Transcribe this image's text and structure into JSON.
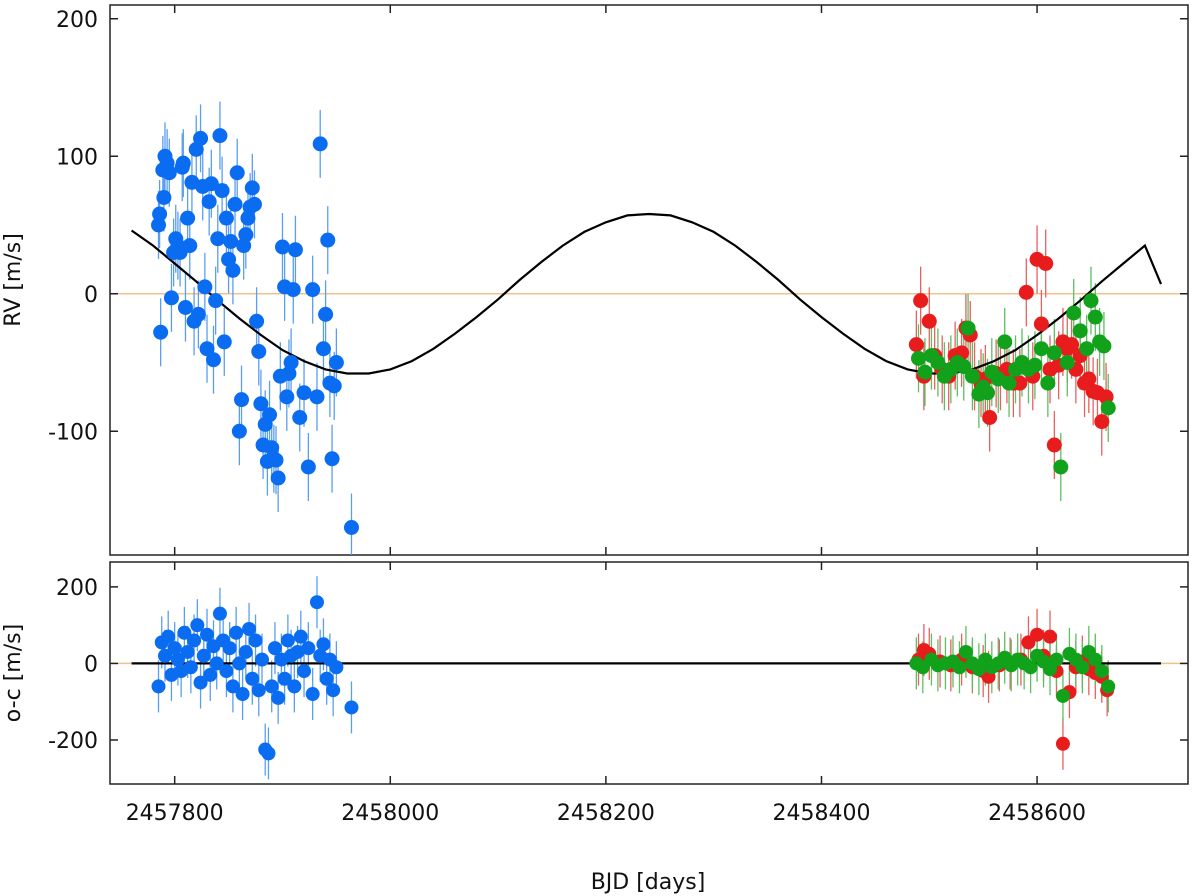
{
  "chart_data": [
    {
      "type": "scatter",
      "title": "",
      "xlabel": "",
      "ylabel": "RV [m/s]",
      "xlim": [
        2457740,
        2458740
      ],
      "ylim": [
        -190,
        210
      ],
      "xticks": [
        2457800,
        2458000,
        2458200,
        2458400,
        2458600
      ],
      "yticks": [
        200,
        100,
        0,
        -100
      ],
      "ytick_labels": [
        "200",
        "100",
        "0",
        "-100"
      ],
      "grid": false,
      "reference_line": {
        "y": 0,
        "color": "#f4c08a"
      },
      "model_curve": {
        "color": "#000000",
        "label": "",
        "x": [
          2457760,
          2457780,
          2457800,
          2457820,
          2457840,
          2457860,
          2457880,
          2457900,
          2457920,
          2457940,
          2457960,
          2457980,
          2458000,
          2458020,
          2458040,
          2458060,
          2458080,
          2458100,
          2458120,
          2458140,
          2458160,
          2458180,
          2458200,
          2458220,
          2458240,
          2458260,
          2458280,
          2458300,
          2458320,
          2458340,
          2458360,
          2458380,
          2458400,
          2458420,
          2458440,
          2458460,
          2458480,
          2458500,
          2458520,
          2458540,
          2458560,
          2458580,
          2458600,
          2458620,
          2458640,
          2458660,
          2458680,
          2458700,
          2458715
        ],
        "y": [
          46,
          35,
          22,
          9,
          -5,
          -18,
          -30,
          -41,
          -49,
          -55,
          -58,
          -58,
          -55,
          -49,
          -40,
          -29,
          -17,
          -4,
          10,
          23,
          35,
          45,
          52,
          57,
          58,
          57,
          52,
          45,
          35,
          23,
          10,
          -4,
          -17,
          -29,
          -40,
          -49,
          -55,
          -58,
          -58,
          -55,
          -49,
          -41,
          -30,
          -18,
          -5,
          9,
          22,
          35,
          7
        ]
      },
      "series": [
        {
          "name": "",
          "color": "#0a6cf0",
          "x": [
            2457785,
            2457786,
            2457787,
            2457789,
            2457790,
            2457791,
            2457793,
            2457795,
            2457797,
            2457799,
            2457801,
            2457803,
            2457805,
            2457807,
            2457808,
            2457810,
            2457812,
            2457814,
            2457816,
            2457818,
            2457820,
            2457822,
            2457824,
            2457826,
            2457828,
            2457830,
            2457832,
            2457834,
            2457836,
            2457838,
            2457840,
            2457842,
            2457844,
            2457846,
            2457848,
            2457850,
            2457852,
            2457854,
            2457856,
            2457858,
            2457860,
            2457862,
            2457864,
            2457866,
            2457868,
            2457870,
            2457872,
            2457874,
            2457876,
            2457878,
            2457880,
            2457882,
            2457884,
            2457886,
            2457888,
            2457890,
            2457892,
            2457894,
            2457896,
            2457898,
            2457900,
            2457902,
            2457904,
            2457906,
            2457908,
            2457910,
            2457912,
            2457916,
            2457920,
            2457924,
            2457928,
            2457932,
            2457935,
            2457938,
            2457940,
            2457942,
            2457944,
            2457946,
            2457948,
            2457950,
            2457964
          ],
          "y": [
            50,
            58,
            -28,
            90,
            70,
            100,
            95,
            88,
            -3,
            30,
            40,
            35,
            30,
            92,
            95,
            -10,
            55,
            35,
            81,
            -20,
            105,
            -15,
            113,
            78,
            5,
            -40,
            67,
            80,
            -48,
            -5,
            40,
            115,
            75,
            -35,
            55,
            25,
            38,
            17,
            65,
            88,
            -100,
            -77,
            35,
            43,
            55,
            63,
            77,
            65,
            -20,
            -42,
            -80,
            -110,
            -95,
            -122,
            -88,
            -112,
            -120,
            -121,
            -134,
            -60,
            34,
            5,
            -75,
            -58,
            -50,
            3,
            32,
            -90,
            -72,
            -126,
            3,
            -75,
            109,
            -40,
            -15,
            39,
            -65,
            -120,
            -67,
            -50,
            -170
          ]
        },
        {
          "name": "",
          "color": "#e81c1c",
          "x": [
            2458488,
            2458492,
            2458495,
            2458500,
            2458505,
            2458512,
            2458518,
            2458524,
            2458530,
            2458534,
            2458538,
            2458542,
            2458548,
            2458552,
            2458556,
            2458562,
            2458566,
            2458572,
            2458578,
            2458584,
            2458590,
            2458596,
            2458600,
            2458604,
            2458608,
            2458612,
            2458616,
            2458620,
            2458624,
            2458628,
            2458632,
            2458636,
            2458640,
            2458644,
            2458648,
            2458652,
            2458656,
            2458660,
            2458664
          ],
          "y": [
            -37,
            -5,
            -60,
            -20,
            -45,
            -55,
            -60,
            -45,
            -43,
            -25,
            -30,
            -60,
            -65,
            -62,
            -90,
            -58,
            -60,
            -55,
            -65,
            -65,
            1,
            -60,
            25,
            -22,
            22,
            -55,
            -110,
            -52,
            -35,
            -40,
            -37,
            -55,
            -45,
            -65,
            -62,
            -71,
            -72,
            -93,
            -75
          ]
        },
        {
          "name": "",
          "color": "#12a11a",
          "x": [
            2458490,
            2458496,
            2458502,
            2458508,
            2458514,
            2458520,
            2458526,
            2458532,
            2458536,
            2458540,
            2458546,
            2458550,
            2458554,
            2458558,
            2458564,
            2458570,
            2458574,
            2458580,
            2458586,
            2458592,
            2458598,
            2458604,
            2458610,
            2458616,
            2458622,
            2458628,
            2458634,
            2458640,
            2458646,
            2458650,
            2458654,
            2458658,
            2458662,
            2458666
          ],
          "y": [
            -47,
            -57,
            -45,
            -50,
            -60,
            -55,
            -50,
            -53,
            -25,
            -60,
            -73,
            -68,
            -72,
            -57,
            -62,
            -35,
            -65,
            -55,
            -50,
            -55,
            -52,
            -40,
            -65,
            -43,
            -126,
            -50,
            -14,
            -27,
            -40,
            -5,
            -17,
            -35,
            -38,
            -83
          ]
        }
      ]
    },
    {
      "type": "scatter",
      "title": "",
      "xlabel": "BJD [days]",
      "ylabel": "o-c [m/s]",
      "xlim": [
        2457740,
        2458740
      ],
      "ylim": [
        -315,
        265
      ],
      "xticks": [
        2457800,
        2458000,
        2458200,
        2458400,
        2458600
      ],
      "xtick_labels": [
        "2457800",
        "2458000",
        "2458200",
        "2458400",
        "2458600"
      ],
      "yticks": [
        200,
        0,
        -200
      ],
      "ytick_labels": [
        "200",
        "0",
        "-200"
      ],
      "grid": false,
      "reference_line": {
        "y": 0,
        "color": "#f4c08a"
      },
      "model_curve": {
        "color": "#000000",
        "label": "",
        "x": [
          2457760,
          2458715
        ],
        "y": [
          0,
          0
        ]
      },
      "series": [
        {
          "name": "",
          "color": "#0a6cf0",
          "x": [
            2457785,
            2457788,
            2457791,
            2457794,
            2457797,
            2457800,
            2457803,
            2457806,
            2457809,
            2457812,
            2457815,
            2457818,
            2457821,
            2457824,
            2457827,
            2457830,
            2457833,
            2457836,
            2457839,
            2457842,
            2457845,
            2457848,
            2457851,
            2457854,
            2457857,
            2457860,
            2457863,
            2457866,
            2457869,
            2457872,
            2457875,
            2457878,
            2457881,
            2457884,
            2457887,
            2457890,
            2457893,
            2457896,
            2457899,
            2457902,
            2457905,
            2457908,
            2457911,
            2457914,
            2457917,
            2457920,
            2457924,
            2457928,
            2457932,
            2457935,
            2457938,
            2457941,
            2457944,
            2457947,
            2457950,
            2457964
          ],
          "y": [
            -60,
            55,
            20,
            70,
            -30,
            40,
            10,
            -20,
            80,
            30,
            -10,
            60,
            100,
            -50,
            20,
            75,
            -30,
            45,
            0,
            130,
            60,
            -20,
            40,
            -60,
            80,
            0,
            -80,
            30,
            90,
            -40,
            60,
            -70,
            10,
            -225,
            -235,
            -60,
            40,
            -90,
            10,
            -40,
            60,
            20,
            -60,
            30,
            70,
            -20,
            40,
            -80,
            160,
            20,
            50,
            -40,
            10,
            -70,
            -10,
            -115
          ]
        },
        {
          "name": "",
          "color": "#e81c1c",
          "x": [
            2458490,
            2458495,
            2458500,
            2458510,
            2458520,
            2458530,
            2458540,
            2458550,
            2458555,
            2458565,
            2458575,
            2458585,
            2458592,
            2458600,
            2458606,
            2458612,
            2458618,
            2458624,
            2458630,
            2458636,
            2458642,
            2458648,
            2458654,
            2458660,
            2458665
          ],
          "y": [
            10,
            35,
            25,
            5,
            -5,
            10,
            -10,
            -20,
            -35,
            -5,
            0,
            10,
            55,
            75,
            20,
            70,
            -20,
            -210,
            -75,
            -10,
            5,
            -15,
            -25,
            -35,
            -70
          ]
        },
        {
          "name": "",
          "color": "#12a11a",
          "x": [
            2458488,
            2458494,
            2458502,
            2458508,
            2458515,
            2458522,
            2458528,
            2458534,
            2458540,
            2458546,
            2458552,
            2458558,
            2458564,
            2458570,
            2458576,
            2458582,
            2458588,
            2458594,
            2458600,
            2458606,
            2458612,
            2458618,
            2458624,
            2458630,
            2458636,
            2458642,
            2458648,
            2458654,
            2458660,
            2458666
          ],
          "y": [
            0,
            -10,
            10,
            -5,
            0,
            5,
            -10,
            30,
            0,
            -15,
            10,
            -10,
            0,
            15,
            -5,
            10,
            0,
            -10,
            20,
            5,
            -15,
            10,
            -85,
            25,
            10,
            -10,
            30,
            10,
            -20,
            -60
          ]
        }
      ]
    }
  ]
}
